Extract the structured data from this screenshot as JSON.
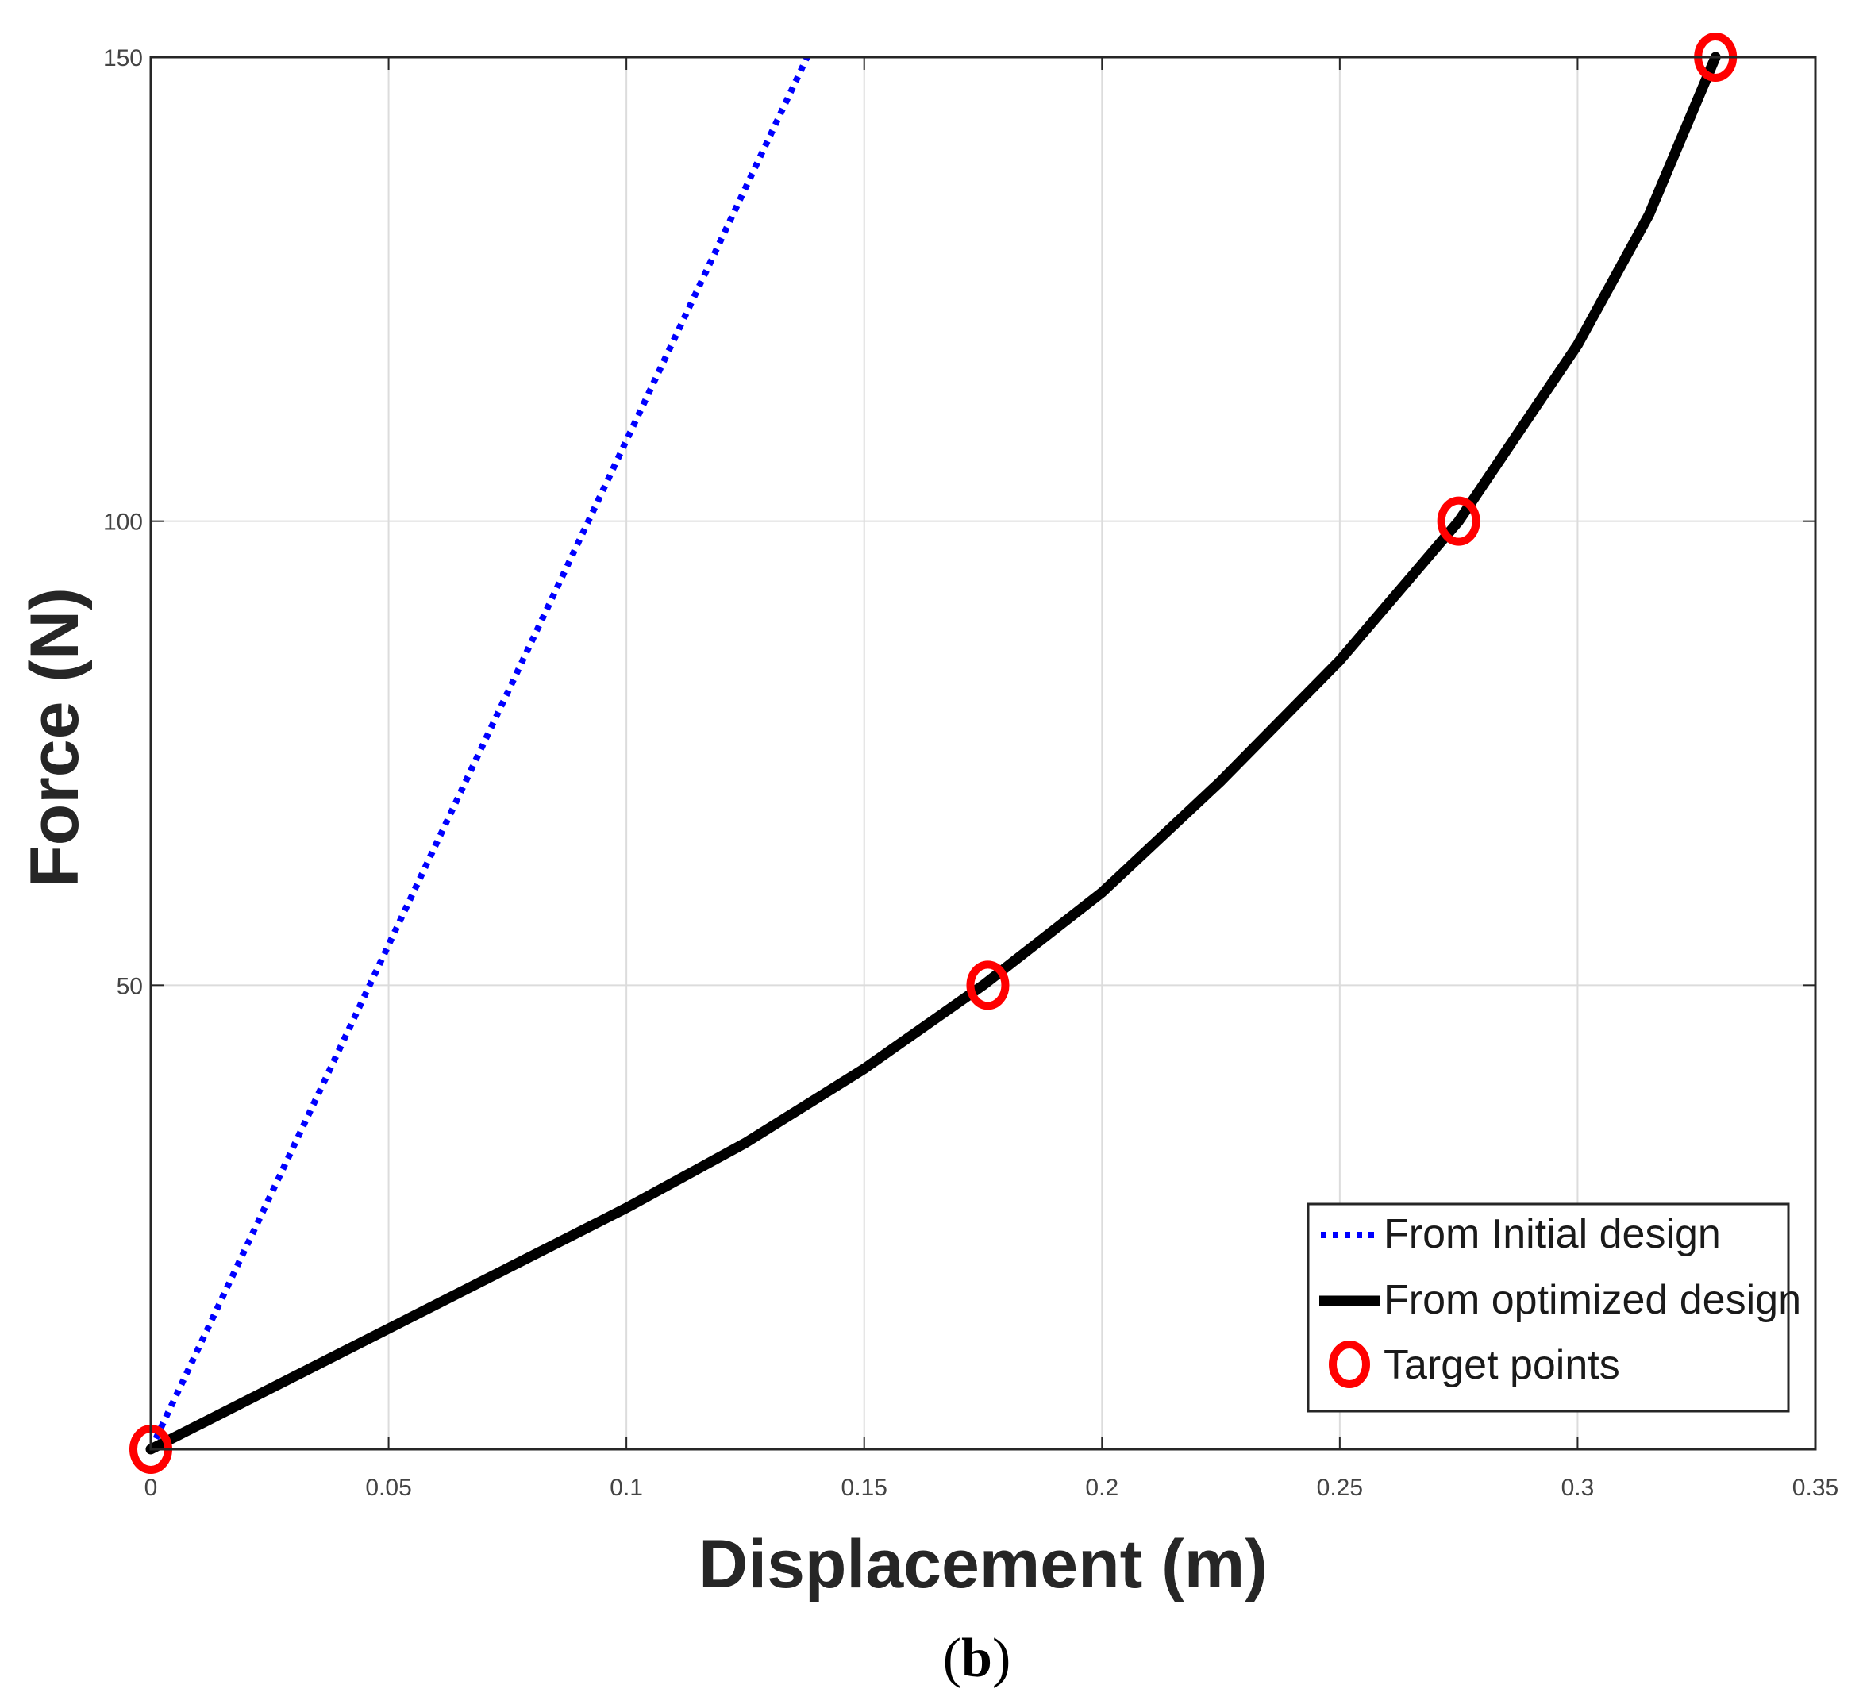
{
  "chart_data": {
    "type": "line",
    "xlabel": "Displacement (m)",
    "ylabel": "Force (N)",
    "xlim": [
      0,
      0.35
    ],
    "ylim": [
      0,
      150
    ],
    "xticks": [
      0,
      0.05,
      0.1,
      0.15,
      0.2,
      0.25,
      0.3,
      0.35
    ],
    "xtick_labels": [
      "0",
      "0.05",
      "0.1",
      "0.15",
      "0.2",
      "0.25",
      "0.3",
      "0.35"
    ],
    "yticks": [
      50,
      100,
      150
    ],
    "ytick_labels": [
      "50",
      "100",
      "150"
    ],
    "grid": true,
    "legend_position": "bottom-right",
    "series": [
      {
        "name": "From Initial design",
        "style": "dotted",
        "color": "#0000ff",
        "x": [
          0,
          0.046,
          0.092,
          0.138
        ],
        "y": [
          0,
          50,
          100,
          150
        ]
      },
      {
        "name": "From optimized design",
        "style": "solid",
        "color": "#000000",
        "x": [
          0,
          0.025,
          0.05,
          0.075,
          0.1,
          0.125,
          0.15,
          0.175,
          0.2,
          0.225,
          0.25,
          0.275,
          0.3,
          0.315,
          0.329
        ],
        "y": [
          0,
          6.5,
          13,
          19.5,
          26,
          33,
          41,
          50,
          60,
          72,
          85,
          100,
          119,
          133,
          150
        ]
      },
      {
        "name": "Target points",
        "style": "marker",
        "color": "#ff0000",
        "marker": "circle",
        "x": [
          0,
          0.176,
          0.275,
          0.329
        ],
        "y": [
          0,
          50,
          100,
          150
        ]
      }
    ]
  },
  "caption": {
    "open": "(",
    "letter": "b",
    "close": ")"
  }
}
